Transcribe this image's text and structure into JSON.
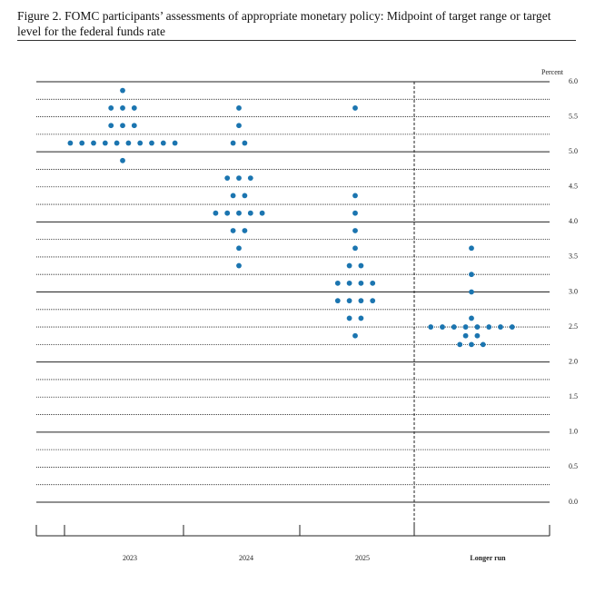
{
  "chart_data": {
    "type": "dot",
    "title": "Figure 2.  FOMC participants’ assessments of appropriate monetary policy: Midpoint of target range or target level for the federal funds rate",
    "y_label": "Percent",
    "categories": [
      "2023",
      "2024",
      "2025",
      "Longer run"
    ],
    "values": [
      [
        5.875,
        5.625,
        5.625,
        5.625,
        5.375,
        5.375,
        5.375,
        5.125,
        5.125,
        5.125,
        5.125,
        5.125,
        5.125,
        5.125,
        5.125,
        5.125,
        5.125,
        4.875
      ],
      [
        5.625,
        5.375,
        5.125,
        5.125,
        4.625,
        4.625,
        4.625,
        4.375,
        4.375,
        4.125,
        4.125,
        4.125,
        4.125,
        4.125,
        3.875,
        3.875,
        3.625,
        3.375
      ],
      [
        5.625,
        4.375,
        4.125,
        3.875,
        3.625,
        3.375,
        3.375,
        3.125,
        3.125,
        3.125,
        3.125,
        2.875,
        2.875,
        2.875,
        2.875,
        2.625,
        2.625,
        2.375
      ],
      [
        3.625,
        3.25,
        3.0,
        2.625,
        2.5,
        2.5,
        2.5,
        2.5,
        2.5,
        2.5,
        2.5,
        2.5,
        2.375,
        2.375,
        2.25,
        2.25,
        2.25
      ]
    ],
    "color": "#1b75b0",
    "ylim": [
      0,
      6
    ],
    "yticks": [
      {
        "value": 0,
        "label": "0.0"
      },
      0.5,
      {
        "value": 1,
        "label": "1.0"
      },
      1.5,
      {
        "value": 2,
        "label": "2.0"
      },
      2.5,
      {
        "value": 3,
        "label": "3.0"
      },
      3.5,
      {
        "value": 4,
        "label": "4.0"
      },
      4.5,
      {
        "value": 5,
        "label": "5.0"
      },
      5.5,
      {
        "value": 6,
        "label": "6.0"
      }
    ],
    "grid": true
  }
}
